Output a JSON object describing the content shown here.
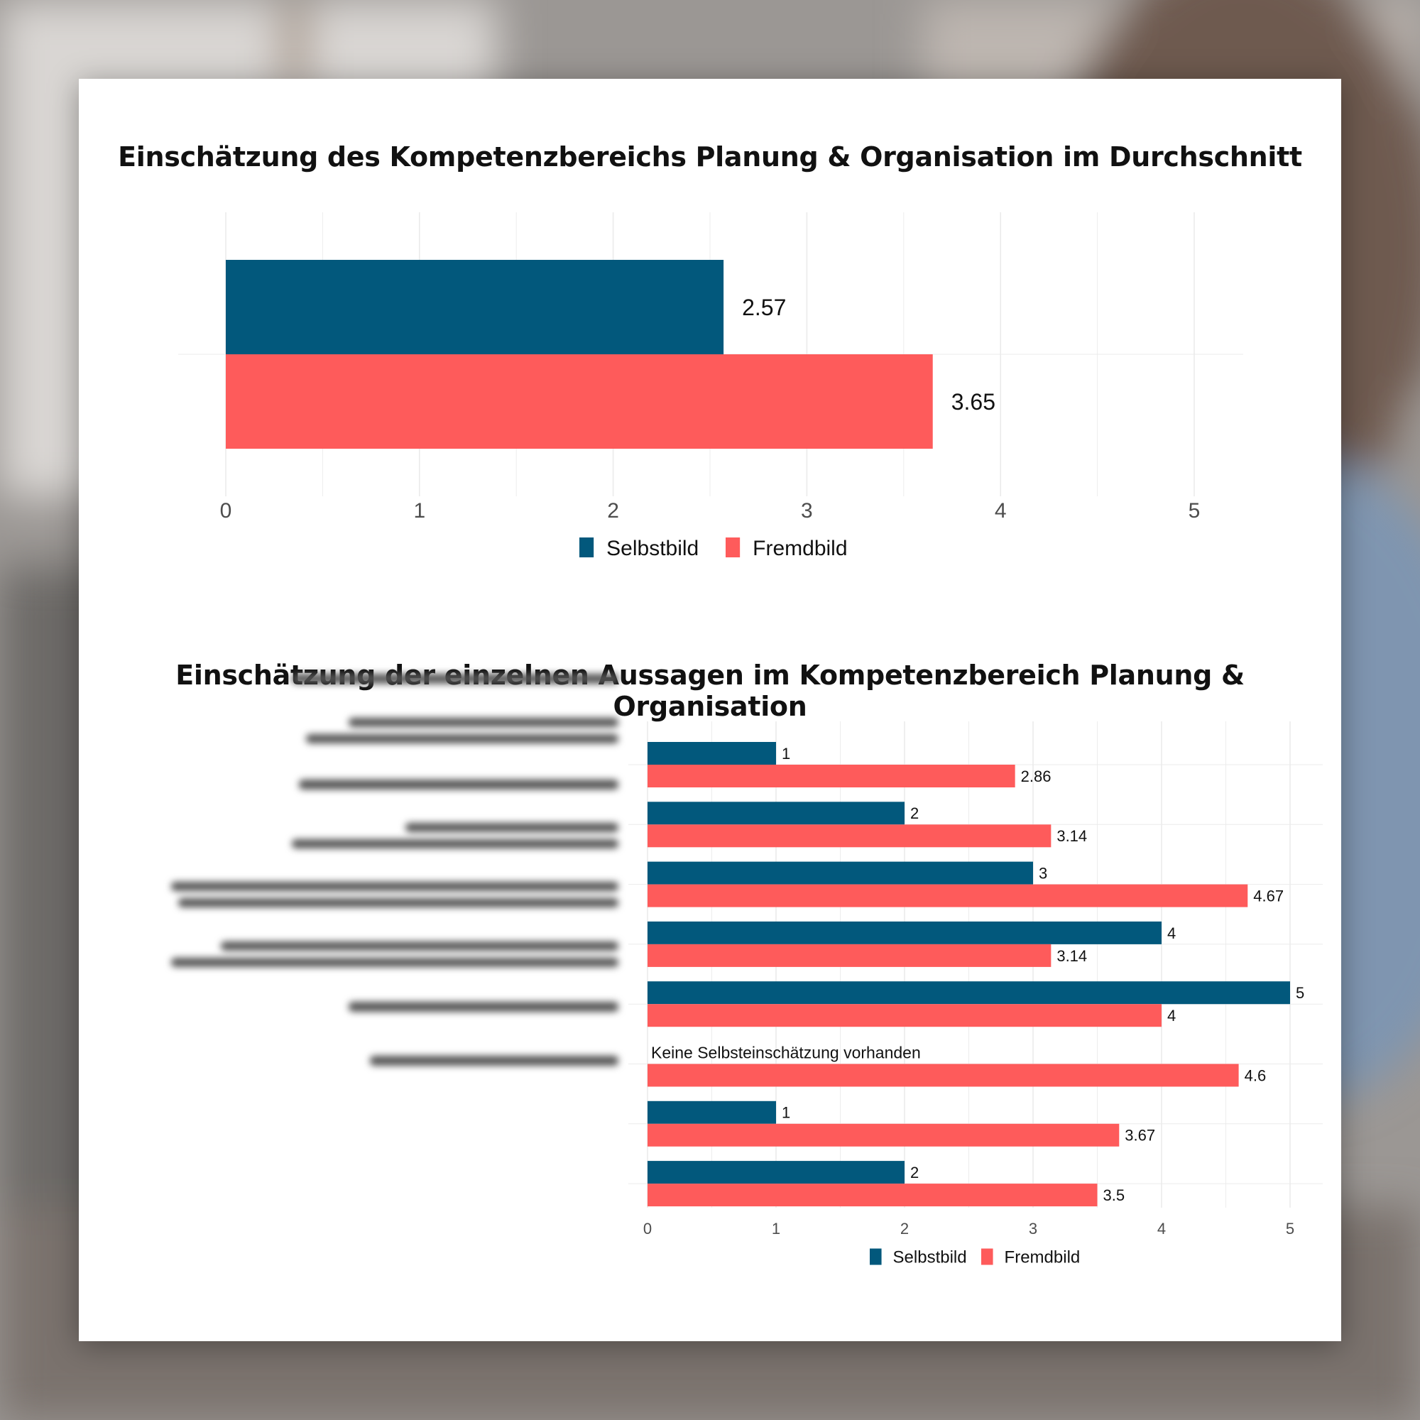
{
  "colors": {
    "selbstbild": "#02587c",
    "fremdbild": "#fe5b5b",
    "grid": "#ebebeb",
    "text": "#111111",
    "tick": "#4d4d4d"
  },
  "chart_data": [
    {
      "type": "bar",
      "orientation": "horizontal",
      "title": "Einschätzung des Kompetenzbereichs Planung & Organisation im Durchschnitt",
      "categories": [
        ""
      ],
      "series": [
        {
          "name": "Selbstbild",
          "values": [
            2.57
          ],
          "labels": [
            "2.57"
          ]
        },
        {
          "name": "Fremdbild",
          "values": [
            3.65
          ],
          "labels": [
            "3.65"
          ]
        }
      ],
      "xlim": [
        0,
        5
      ],
      "xticks": [
        "0",
        "1",
        "2",
        "3",
        "4",
        "5"
      ],
      "legend": [
        "Selbstbild",
        "Fremdbild"
      ],
      "legend_position": "bottom"
    },
    {
      "type": "bar",
      "orientation": "horizontal",
      "title": "Einschätzung der einzelnen Aussagen im Kompetenzbereich Planung & Organisation",
      "categories": [
        "",
        "",
        "",
        "",
        "",
        "",
        "",
        ""
      ],
      "series": [
        {
          "name": "Selbstbild",
          "values": [
            1,
            2,
            3,
            4,
            5,
            null,
            1,
            2
          ],
          "labels": [
            "1",
            "2",
            "3",
            "4",
            "5",
            "",
            "1",
            "2"
          ]
        },
        {
          "name": "Fremdbild",
          "values": [
            2.86,
            3.14,
            4.67,
            3.14,
            4,
            4.6,
            3.67,
            3.5
          ],
          "labels": [
            "2.86",
            "3.14",
            "4.67",
            "3.14",
            "4",
            "4.6",
            "3.67",
            "3.5"
          ]
        }
      ],
      "missing_note": "Keine Selbsteinschätzung vorhanden",
      "xlim": [
        0,
        5
      ],
      "xticks": [
        "0",
        "1",
        "2",
        "3",
        "4",
        "5"
      ],
      "legend": [
        "Selbstbild",
        "Fremdbild"
      ],
      "legend_position": "bottom"
    }
  ]
}
